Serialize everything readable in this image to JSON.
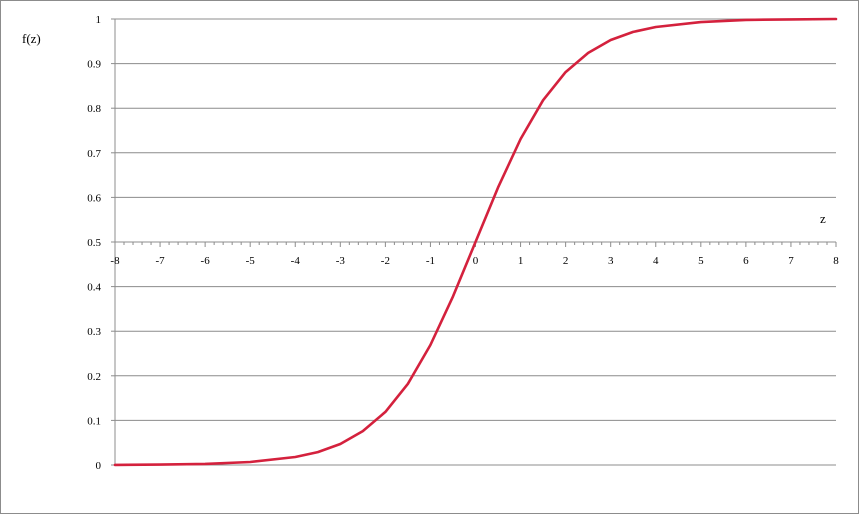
{
  "chart_data": {
    "type": "line",
    "title": "",
    "xlabel": "z",
    "ylabel": "f(z)",
    "xlim": [
      -8,
      8
    ],
    "ylim": [
      0,
      1
    ],
    "x_ticks": [
      -8,
      -7,
      -6,
      -5,
      -4,
      -3,
      -2,
      -1,
      0,
      1,
      2,
      3,
      4,
      5,
      6,
      7,
      8
    ],
    "y_ticks": [
      0,
      0.1,
      0.2,
      0.3,
      0.4,
      0.5,
      0.6,
      0.7,
      0.8,
      0.9,
      1
    ],
    "grid": "horizontal",
    "series": [
      {
        "color": "#d4213d",
        "x": [
          -8,
          -7,
          -6,
          -5,
          -4,
          -3.5,
          -3,
          -2.5,
          -2,
          -1.5,
          -1,
          -0.5,
          0,
          0.5,
          1,
          1.5,
          2,
          2.5,
          3,
          3.5,
          4,
          5,
          6,
          7,
          8
        ],
        "y": [
          0.0003,
          0.0009,
          0.0025,
          0.0067,
          0.018,
          0.029,
          0.047,
          0.076,
          0.119,
          0.182,
          0.269,
          0.378,
          0.5,
          0.622,
          0.731,
          0.818,
          0.881,
          0.924,
          0.953,
          0.971,
          0.982,
          0.993,
          0.998,
          0.999,
          1.0
        ]
      }
    ]
  }
}
